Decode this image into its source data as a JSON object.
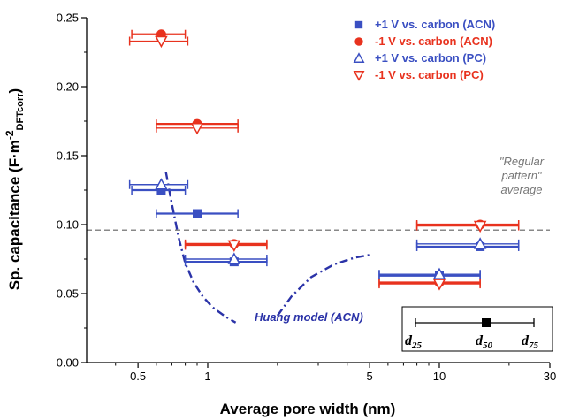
{
  "chart_data": {
    "type": "scatter",
    "x_scale": "log",
    "xlim": [
      0.3,
      30
    ],
    "ylim": [
      0.0,
      0.25
    ],
    "xlabel": "Average pore width (nm)",
    "ylabel_main": "Sp. capacitance (F·m",
    "ylabel_sup": "-2",
    "ylabel_sub": "DFTcorr",
    "ylabel_close": ")",
    "x_ticks": [
      0.5,
      1,
      5,
      10,
      30
    ],
    "x_tick_labels": [
      "0.5",
      "1",
      "5",
      "10",
      "30"
    ],
    "y_ticks": [
      0.0,
      0.05,
      0.1,
      0.15,
      0.2,
      0.25
    ],
    "y_tick_labels": [
      "0.00",
      "0.05",
      "0.10",
      "0.15",
      "0.20",
      "0.25"
    ],
    "colors": {
      "blue": "#3a4fc2",
      "red": "#e8321e",
      "gray": "#888888"
    },
    "series": [
      {
        "name": "+1 V vs. carbon (ACN)",
        "marker": "square-filled",
        "color": "#3a4fc2",
        "points": [
          {
            "x": 0.9,
            "y": 0.108,
            "xlo": 0.6,
            "xhi": 1.35
          },
          {
            "x": 1.3,
            "y": 0.073,
            "xlo": 0.8,
            "xhi": 1.8
          },
          {
            "x": 10,
            "y": 0.063,
            "xlo": 5.5,
            "xhi": 15
          },
          {
            "x": 15,
            "y": 0.084,
            "xlo": 8,
            "xhi": 22
          },
          {
            "x": 0.63,
            "y": 0.125,
            "xlo": 0.47,
            "xhi": 0.8
          }
        ]
      },
      {
        "name": "-1 V vs. carbon (ACN)",
        "marker": "circle-filled",
        "color": "#e8321e",
        "points": [
          {
            "x": 0.63,
            "y": 0.238,
            "xlo": 0.47,
            "xhi": 0.8
          },
          {
            "x": 0.9,
            "y": 0.173,
            "xlo": 0.6,
            "xhi": 1.35
          },
          {
            "x": 1.3,
            "y": 0.086,
            "xlo": 0.8,
            "xhi": 1.8
          },
          {
            "x": 10,
            "y": 0.058,
            "xlo": 5.5,
            "xhi": 15
          },
          {
            "x": 15,
            "y": 0.1,
            "xlo": 8,
            "xhi": 22
          }
        ]
      },
      {
        "name": "+1 V vs. carbon (PC)",
        "marker": "triangle-up-open",
        "color": "#3a4fc2",
        "points": [
          {
            "x": 0.63,
            "y": 0.129,
            "xlo": 0.46,
            "xhi": 0.82
          },
          {
            "x": 1.3,
            "y": 0.075,
            "xlo": 0.8,
            "xhi": 1.8
          },
          {
            "x": 10,
            "y": 0.064,
            "xlo": 5.5,
            "xhi": 15
          },
          {
            "x": 15,
            "y": 0.086,
            "xlo": 8,
            "xhi": 22
          }
        ]
      },
      {
        "name": "-1 V vs. carbon (PC)",
        "marker": "triangle-down-open",
        "color": "#e8321e",
        "points": [
          {
            "x": 0.63,
            "y": 0.233,
            "xlo": 0.46,
            "xhi": 0.82
          },
          {
            "x": 0.9,
            "y": 0.17,
            "xlo": 0.6,
            "xhi": 1.35
          },
          {
            "x": 1.3,
            "y": 0.085,
            "xlo": 0.8,
            "xhi": 1.8
          },
          {
            "x": 10,
            "y": 0.057,
            "xlo": 5.5,
            "xhi": 15
          },
          {
            "x": 15,
            "y": 0.099,
            "xlo": 8,
            "xhi": 22
          }
        ]
      }
    ],
    "huang_model": {
      "label": "Huang model (ACN)",
      "color": "#2b33a8",
      "segment1": [
        [
          0.66,
          0.138
        ],
        [
          0.7,
          0.115
        ],
        [
          0.75,
          0.09
        ],
        [
          0.8,
          0.072
        ],
        [
          0.87,
          0.058
        ],
        [
          0.95,
          0.048
        ],
        [
          1.05,
          0.04
        ],
        [
          1.2,
          0.033
        ],
        [
          1.32,
          0.029
        ]
      ],
      "segment2": [
        [
          2.0,
          0.034
        ],
        [
          2.3,
          0.048
        ],
        [
          2.8,
          0.062
        ],
        [
          3.5,
          0.071
        ],
        [
          4.3,
          0.076
        ],
        [
          5.0,
          0.078
        ]
      ]
    },
    "reference_line": {
      "y": 0.096,
      "label_lines": [
        "\"Regular",
        "pattern\"",
        "average"
      ]
    },
    "inset": {
      "d25": "d",
      "d25_sub": "25",
      "d50": "d",
      "d50_sub": "50",
      "d75": "d",
      "d75_sub": "75"
    },
    "legend_placement": "top-right",
    "grid": false
  }
}
